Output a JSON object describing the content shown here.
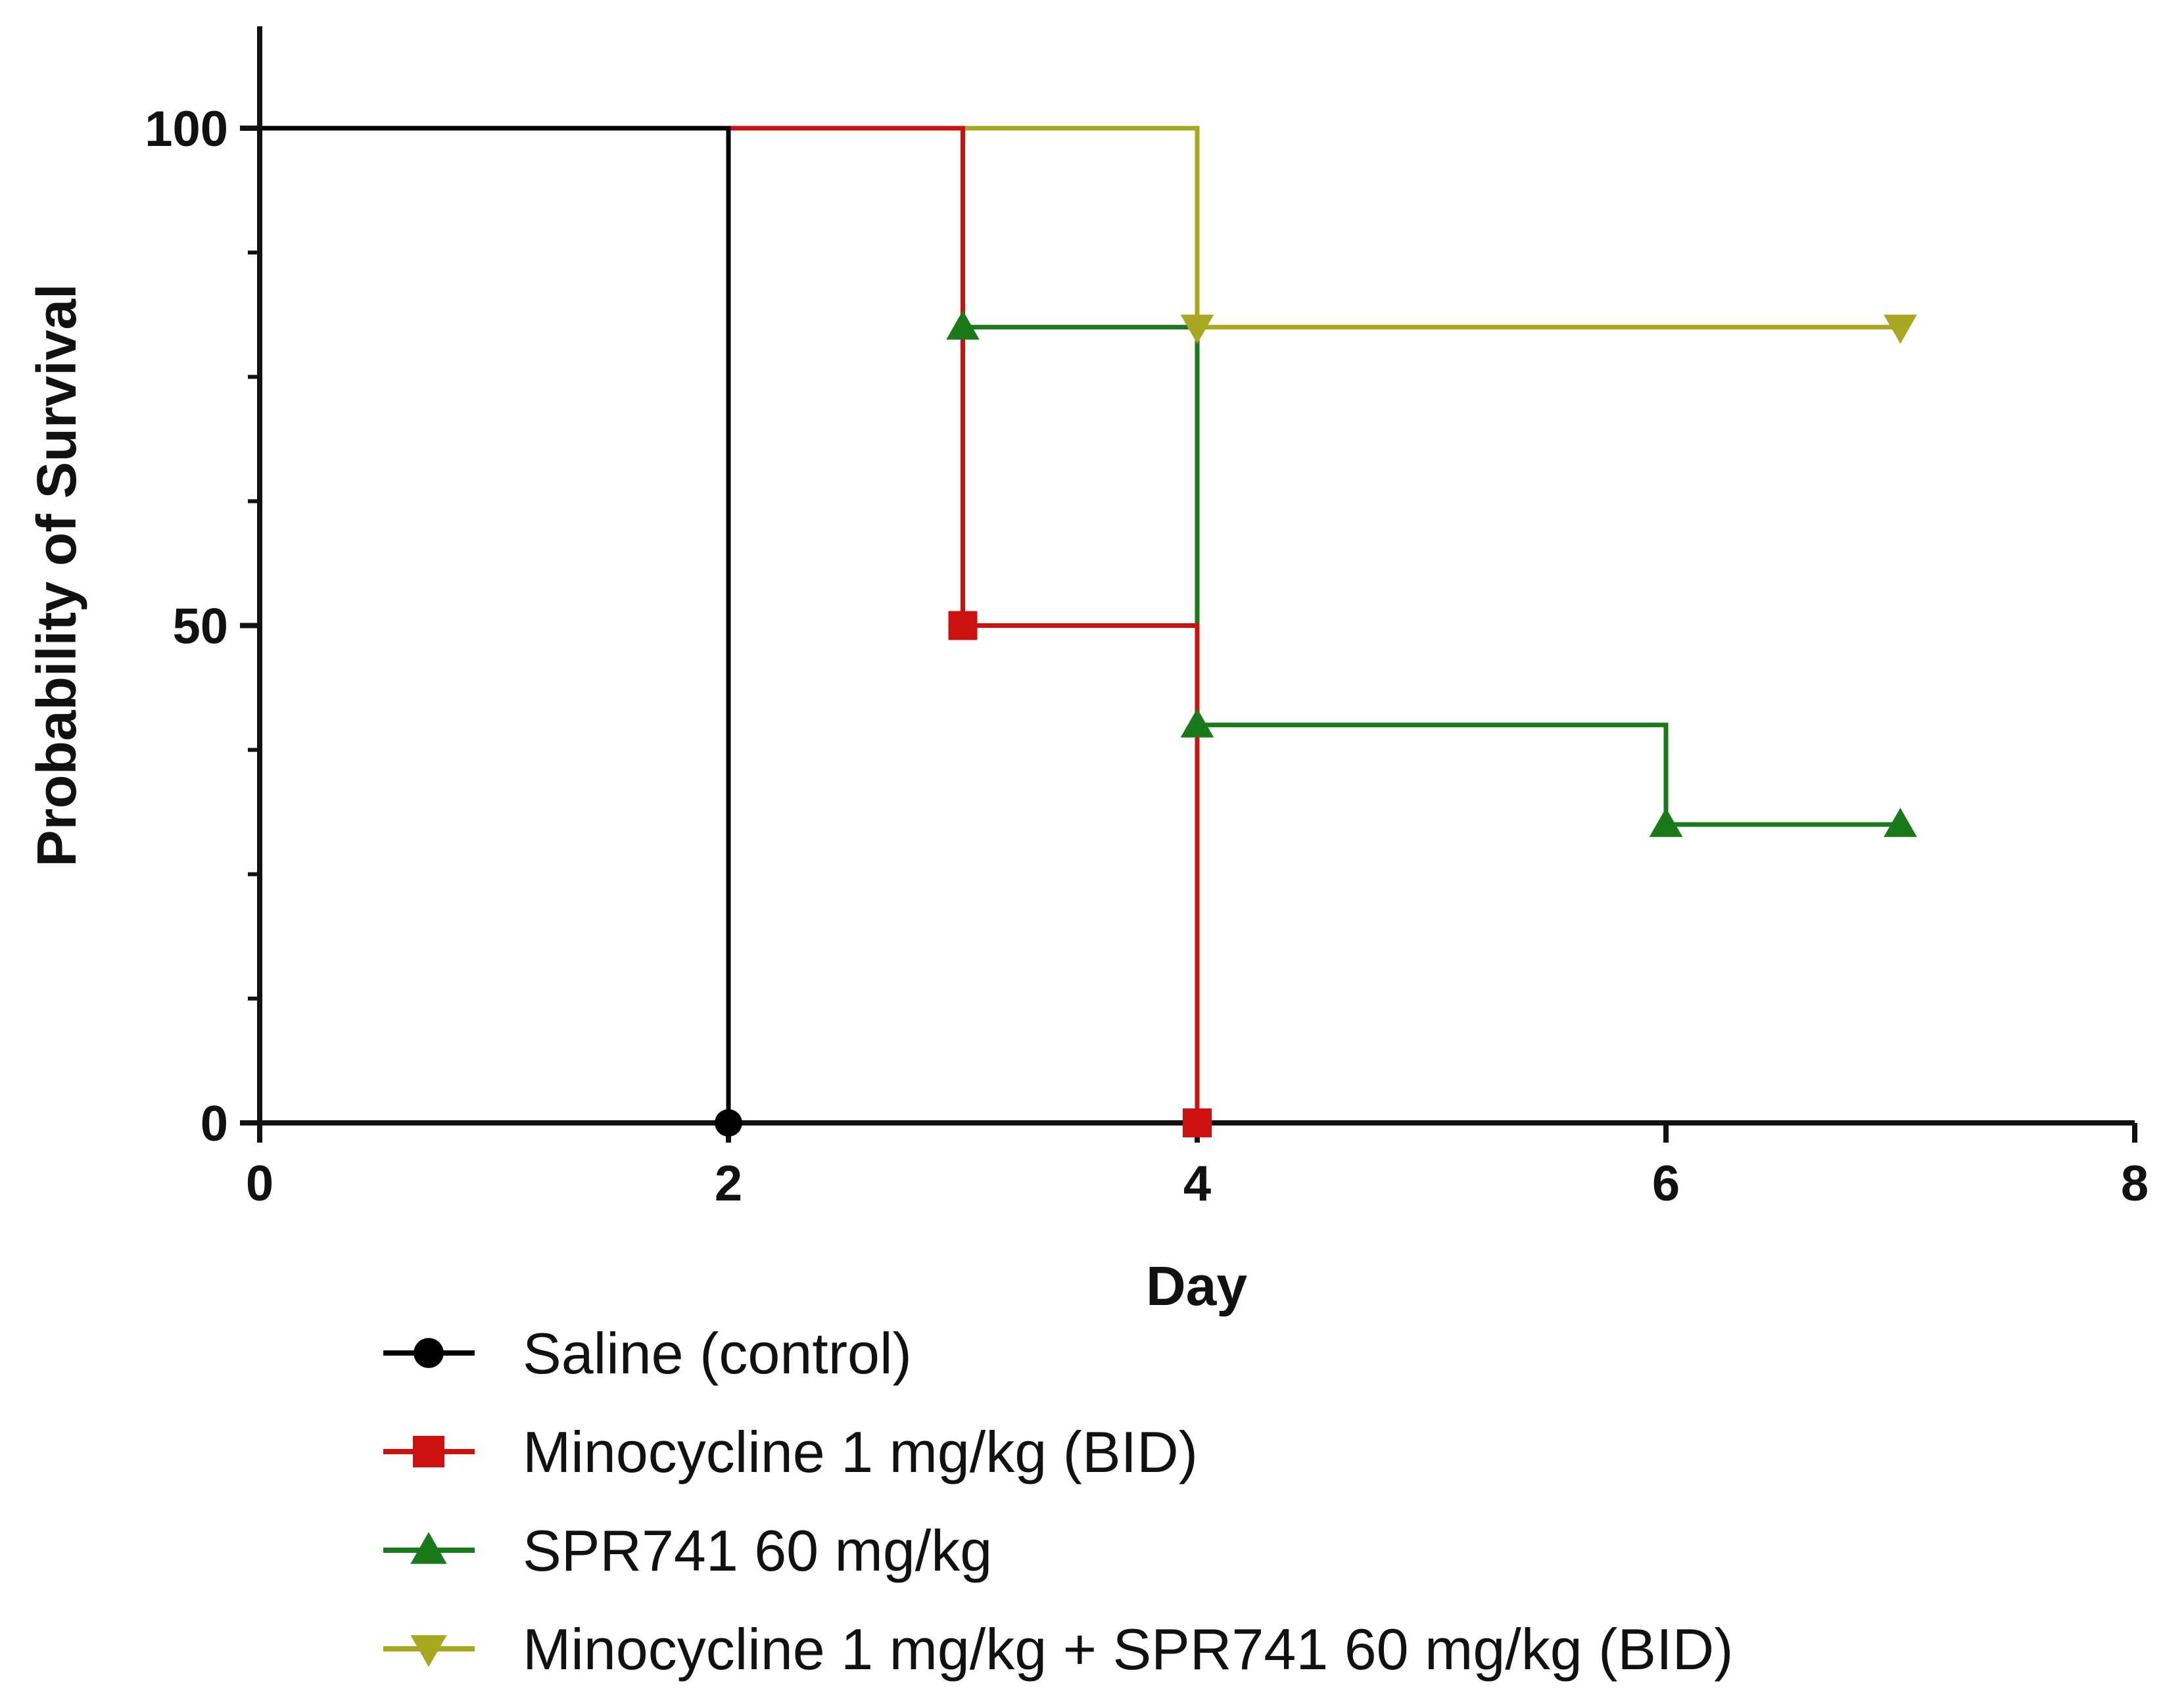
{
  "chart_data": {
    "type": "line",
    "subtype": "kaplan-meier-step",
    "title": "",
    "xlabel": "Day",
    "ylabel": "Probability of Survival",
    "xlim": [
      0,
      8
    ],
    "ylim": [
      0,
      110
    ],
    "x_ticks": [
      0,
      2,
      4,
      6,
      8
    ],
    "x_tick_labels": [
      "0",
      "2",
      "4",
      "6",
      "8"
    ],
    "y_ticks": [
      0,
      50,
      100
    ],
    "y_tick_labels": [
      "0",
      "50",
      "100"
    ],
    "y_minor_ticks": [
      12.5,
      25,
      37.5,
      62.5,
      75,
      87.5
    ],
    "legend_position": "bottom",
    "series": [
      {
        "name": "Saline (control)",
        "color": "#000000",
        "marker": "circle",
        "steps": [
          [
            0,
            100
          ],
          [
            2,
            0
          ]
        ],
        "markers": [
          [
            2,
            0
          ]
        ]
      },
      {
        "name": "Minocycline 1 mg/kg (BID)",
        "color": "#cc1111",
        "marker": "square",
        "steps": [
          [
            0,
            100
          ],
          [
            3,
            50
          ],
          [
            4,
            0
          ]
        ],
        "markers": [
          [
            3,
            50
          ],
          [
            4,
            0
          ]
        ]
      },
      {
        "name": "SPR741 60 mg/kg",
        "color": "#1a7a1a",
        "marker": "triangle-up",
        "steps": [
          [
            0,
            100
          ],
          [
            3,
            80
          ],
          [
            4,
            40
          ],
          [
            6,
            30
          ],
          [
            7,
            30
          ]
        ],
        "markers": [
          [
            3,
            80
          ],
          [
            4,
            40
          ],
          [
            6,
            30
          ],
          [
            7,
            30
          ]
        ]
      },
      {
        "name": "Minocycline 1 mg/kg + SPR741 60 mg/kg (BID)",
        "color": "#a8a820",
        "marker": "triangle-down",
        "steps": [
          [
            0,
            100
          ],
          [
            4,
            80
          ],
          [
            7,
            80
          ]
        ],
        "markers": [
          [
            4,
            80
          ],
          [
            7,
            80
          ]
        ]
      }
    ]
  }
}
